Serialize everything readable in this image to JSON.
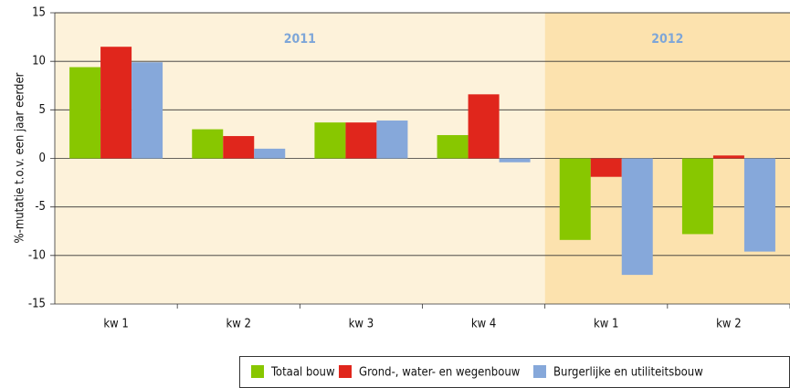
{
  "chart_data": {
    "type": "bar",
    "y_label": "%-mutatie t.o.v. een jaar eerder",
    "categories": [
      "kw 1",
      "kw 2",
      "kw 3",
      "kw 4",
      "kw 1",
      "kw 2"
    ],
    "groups": [
      {
        "label": "2011",
        "span": 4,
        "color": "#fdf2da"
      },
      {
        "label": "2012",
        "span": 2,
        "color": "#fce2ae"
      }
    ],
    "series": [
      {
        "name": "Totaal bouw",
        "color": "#88c700",
        "values": [
          9.4,
          3.0,
          3.7,
          2.4,
          -8.4,
          -7.8
        ]
      },
      {
        "name": "Grond-, water- en wegenbouw",
        "color": "#e0261c",
        "values": [
          11.5,
          2.3,
          3.7,
          6.6,
          -1.9,
          0.3
        ]
      },
      {
        "name": "Burgerlijke en utiliteitsbouw",
        "color": "#86a8da",
        "values": [
          9.9,
          1.0,
          3.9,
          -0.4,
          -12.0,
          -9.6
        ]
      }
    ],
    "ylim": [
      -15,
      15
    ],
    "yticks": [
      -15,
      -10,
      -5,
      0,
      5,
      10,
      15
    ],
    "grid": true
  }
}
